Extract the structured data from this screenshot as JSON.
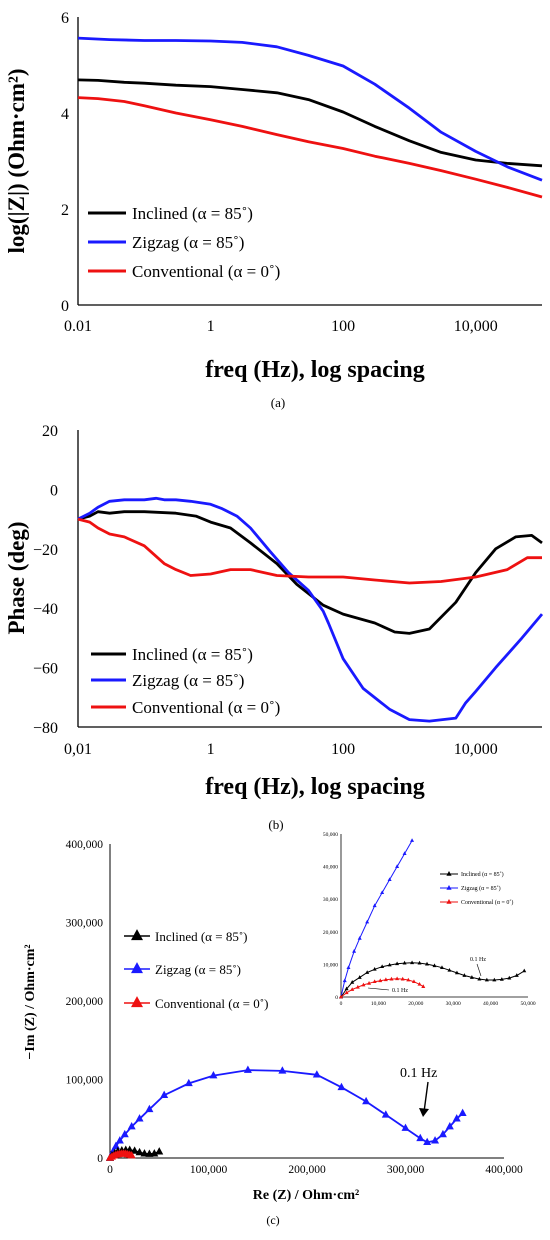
{
  "figure": {
    "panel_a_label": "(a)",
    "panel_b_label": "(b)",
    "panel_c_label": "(c)"
  },
  "colors": {
    "inclined": "#000000",
    "zigzag": "#1a1aff",
    "conventional": "#ee1111"
  },
  "chart_data": [
    {
      "type": "line",
      "panel": "(a)",
      "xlabel": "freq (Hz), log spacing",
      "ylabel": "log(|Z|) (Ohm·cm²)",
      "xscale": "log",
      "xlim": [
        0.01,
        100000
      ],
      "ylim": [
        0,
        6
      ],
      "xticks": [
        "0.01",
        "1",
        "100",
        "10,000"
      ],
      "yticks": [
        "0",
        "2",
        "4",
        "6"
      ],
      "legend": [
        "Inclined (α = 85˚)",
        "Zigzag (α = 85˚)",
        "Conventional (α = 0˚)"
      ],
      "legend_position": "lower-left",
      "series": [
        {
          "name": "Inclined (α = 85˚)",
          "color": "#000000",
          "x": [
            0.01,
            0.02,
            0.05,
            0.1,
            0.3,
            1,
            3,
            10,
            30,
            100,
            300,
            1000,
            3000,
            10000,
            30000,
            100000
          ],
          "y": [
            4.69,
            4.68,
            4.64,
            4.62,
            4.58,
            4.55,
            4.49,
            4.42,
            4.28,
            4.02,
            3.72,
            3.42,
            3.18,
            3.02,
            2.95,
            2.9
          ]
        },
        {
          "name": "Zigzag (α = 85˚)",
          "color": "#1a1aff",
          "x": [
            0.01,
            0.03,
            0.1,
            0.3,
            1,
            3,
            10,
            30,
            100,
            300,
            1000,
            3000,
            10000,
            30000,
            100000
          ],
          "y": [
            5.56,
            5.53,
            5.51,
            5.51,
            5.5,
            5.47,
            5.38,
            5.2,
            4.98,
            4.6,
            4.1,
            3.6,
            3.2,
            2.88,
            2.6
          ]
        },
        {
          "name": "Conventional (α = 0˚)",
          "color": "#ee1111",
          "x": [
            0.01,
            0.02,
            0.05,
            0.1,
            0.3,
            1,
            3,
            10,
            30,
            100,
            300,
            1000,
            3000,
            10000,
            30000,
            100000
          ],
          "y": [
            4.32,
            4.3,
            4.24,
            4.15,
            4.0,
            3.86,
            3.72,
            3.55,
            3.4,
            3.26,
            3.1,
            2.95,
            2.8,
            2.62,
            2.45,
            2.25
          ]
        }
      ]
    },
    {
      "type": "line",
      "panel": "(b)",
      "xlabel": "freq (Hz), log spacing",
      "ylabel": "Phase (deg)",
      "xscale": "log",
      "xlim": [
        0.01,
        100000
      ],
      "ylim": [
        -80,
        20
      ],
      "xticks": [
        "0,01",
        "1",
        "100",
        "10,000"
      ],
      "yticks": [
        "20",
        "0",
        "−20",
        "−40",
        "−60",
        "−80"
      ],
      "legend": [
        "Inclined (α = 85˚)",
        "Zigzag (α = 85˚)",
        "Conventional (α = 0˚)"
      ],
      "legend_position": "lower-left",
      "series": [
        {
          "name": "Inclined (α = 85˚)",
          "color": "#000000",
          "x": [
            0.01,
            0.015,
            0.02,
            0.03,
            0.05,
            0.1,
            0.3,
            0.6,
            1,
            2,
            4,
            10,
            20,
            50,
            100,
            300,
            600,
            1000,
            2000,
            5000,
            10000,
            20000,
            40000,
            70000,
            100000
          ],
          "y": [
            -10,
            -9,
            -7.5,
            -8,
            -7.5,
            -7.5,
            -8,
            -9,
            -11,
            -13,
            -18,
            -25,
            -32,
            -39,
            -42,
            -45,
            -48,
            -48.5,
            -47,
            -38,
            -28,
            -20,
            -16,
            -15.5,
            -18
          ]
        },
        {
          "name": "Zigzag (α = 85˚)",
          "color": "#1a1aff",
          "x": [
            0.01,
            0.015,
            0.02,
            0.03,
            0.05,
            0.1,
            0.15,
            0.2,
            0.3,
            0.5,
            1,
            1.5,
            2.5,
            4,
            8,
            15,
            30,
            50,
            60,
            100,
            200,
            500,
            1000,
            2000,
            5000,
            7000,
            10000,
            20000,
            50000,
            100000
          ],
          "y": [
            -10,
            -8,
            -6,
            -4,
            -3.5,
            -3.5,
            -3,
            -3.5,
            -3.5,
            -4,
            -5,
            -6.5,
            -9,
            -13,
            -21,
            -28,
            -34,
            -41,
            -45,
            -57,
            -67,
            -74,
            -77.5,
            -78,
            -77,
            -72,
            -68,
            -60,
            -50,
            -42
          ]
        },
        {
          "name": "Conventional (α = 0˚)",
          "color": "#ee1111",
          "x": [
            0.01,
            0.015,
            0.02,
            0.03,
            0.05,
            0.1,
            0.2,
            0.3,
            0.5,
            1,
            2,
            4,
            10,
            30,
            100,
            300,
            1000,
            3000,
            10000,
            30000,
            60000,
            100000
          ],
          "y": [
            -10,
            -11,
            -13,
            -15,
            -16,
            -19,
            -25,
            -27,
            -29,
            -28.5,
            -27,
            -27,
            -29,
            -29.5,
            -29.5,
            -30.5,
            -31.5,
            -31,
            -29.5,
            -27,
            -23,
            -23
          ]
        }
      ]
    },
    {
      "type": "scatter",
      "panel": "(c)",
      "xlabel": "Re (Z) / Ohm·cm²",
      "ylabel": "−Im (Z) / Ohm·cm²",
      "xlim": [
        0,
        400000
      ],
      "ylim": [
        0,
        400000
      ],
      "xticks": [
        "0",
        "100,000",
        "200,000",
        "300,000",
        "400,000"
      ],
      "yticks": [
        "0",
        "100,000",
        "200,000",
        "300,000",
        "400,000"
      ],
      "legend": [
        "Inclined (α = 85˚)",
        "Zigzag (α = 85˚)",
        "Conventional (α = 0˚)"
      ],
      "legend_position": "middle-left",
      "annotation": "0.1 Hz",
      "series": [
        {
          "name": "Inclined (α = 85˚)",
          "color": "#000000",
          "x": [
            0,
            2000,
            5000,
            8000,
            12000,
            16000,
            20000,
            25000,
            30000,
            35000,
            40000,
            45000,
            50000
          ],
          "y": [
            0,
            3000,
            6000,
            8500,
            9500,
            10000,
            10000,
            9000,
            7000,
            5500,
            5000,
            5500,
            8000
          ]
        },
        {
          "name": "Zigzag (α = 85˚)",
          "color": "#1a1aff",
          "x": [
            0,
            3000,
            6000,
            10000,
            15000,
            22000,
            30000,
            40000,
            55000,
            80000,
            105000,
            140000,
            175000,
            210000,
            235000,
            260000,
            280000,
            300000,
            315000,
            322000,
            330000,
            338000,
            345000,
            352000,
            358000
          ],
          "y": [
            0,
            8000,
            15000,
            22000,
            30000,
            40000,
            50000,
            62000,
            80000,
            95000,
            105000,
            112000,
            111000,
            106000,
            90000,
            72000,
            55000,
            38000,
            25000,
            20000,
            22000,
            30000,
            40000,
            50000,
            57000
          ]
        },
        {
          "name": "Conventional (α = 0˚)",
          "color": "#ee1111",
          "x": [
            0,
            2000,
            4000,
            6000,
            8000,
            10000,
            12000,
            14000,
            16000,
            18000,
            20000,
            22000
          ],
          "y": [
            0,
            1500,
            2800,
            3800,
            4500,
            5000,
            5300,
            5400,
            5200,
            4500,
            3800,
            3000
          ]
        }
      ],
      "inset": {
        "xlim": [
          0,
          50000
        ],
        "ylim": [
          0,
          50000
        ],
        "xticks": [
          "0",
          "10,000",
          "20,000",
          "30,000",
          "40,000",
          "50,000"
        ],
        "yticks": [
          "0",
          "10,000",
          "20,000",
          "30,000",
          "40,000",
          "50,000"
        ],
        "legend": [
          "Inclined (α = 85˚)",
          "Zigzag (α = 85˚)",
          "Conventional (α = 0˚)"
        ],
        "annotation_inclined": "0.1 Hz",
        "annotation_conventional": "0.1 Hz",
        "zigzag_x": [
          0,
          1000,
          2000,
          3500,
          5000,
          7000,
          9000,
          11000,
          13000,
          15000,
          17000,
          19000,
          21000
        ],
        "zigzag_y": [
          0,
          5000,
          9000,
          14000,
          18000,
          23000,
          28000,
          32000,
          36000,
          40000,
          44000,
          48000,
          51000
        ],
        "inclined_x": [
          0,
          1500,
          3000,
          5000,
          7000,
          9000,
          11000,
          13000,
          15000,
          17000,
          19000,
          21000,
          23000,
          25000,
          27000,
          29000,
          31000,
          33000,
          35000,
          37000,
          39000,
          41000,
          43000,
          45000,
          47000,
          49000
        ],
        "inclined_y": [
          0,
          2500,
          4500,
          6000,
          7500,
          8500,
          9300,
          9800,
          10200,
          10400,
          10500,
          10400,
          10100,
          9600,
          9000,
          8200,
          7400,
          6600,
          6000,
          5500,
          5200,
          5200,
          5400,
          5800,
          6600,
          8000
        ],
        "conventional_x": [
          0,
          1500,
          3000,
          4500,
          6000,
          7500,
          9000,
          10500,
          12000,
          13500,
          15000,
          16500,
          18000,
          19500,
          21000,
          22000
        ],
        "conventional_y": [
          0,
          1300,
          2300,
          3000,
          3700,
          4200,
          4700,
          5000,
          5300,
          5500,
          5600,
          5500,
          5200,
          4700,
          3900,
          3200
        ]
      }
    }
  ]
}
